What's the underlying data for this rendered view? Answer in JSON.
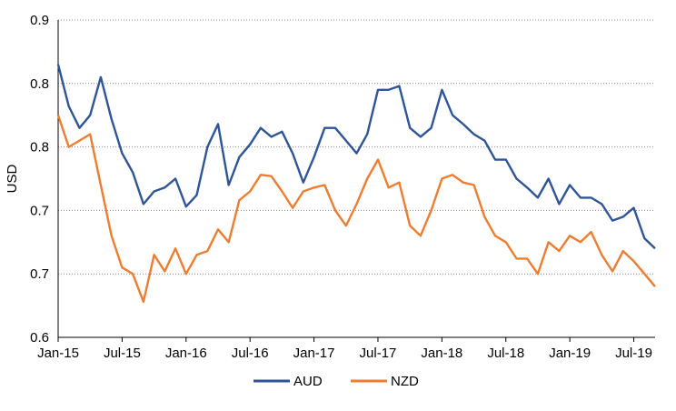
{
  "chart_data": {
    "type": "line",
    "title": "",
    "xlabel": "",
    "ylabel": "USD",
    "y_tick_labels": [
      "0.6",
      "0.7",
      "0.7",
      "0.8",
      "0.8",
      "0.9"
    ],
    "y_tick_values": [
      0.6,
      0.65,
      0.7,
      0.75,
      0.8,
      0.85
    ],
    "ylim": [
      0.6,
      0.85
    ],
    "x_tick_labels": [
      "Jan-15",
      "Jul-15",
      "Jan-16",
      "Jul-16",
      "Jan-17",
      "Jul-17",
      "Jan-18",
      "Jul-18",
      "Jan-19",
      "Jul-19"
    ],
    "x_tick_dates": [
      "2015-01",
      "2015-07",
      "2016-01",
      "2016-07",
      "2017-01",
      "2017-07",
      "2018-01",
      "2018-07",
      "2019-01",
      "2019-07"
    ],
    "xlim": [
      "2015-01",
      "2019-09"
    ],
    "grid": "horizontal dotted",
    "legend_position": "bottom",
    "x": [
      "2015-01",
      "2015-02",
      "2015-03",
      "2015-04",
      "2015-05",
      "2015-06",
      "2015-07",
      "2015-08",
      "2015-09",
      "2015-10",
      "2015-11",
      "2015-12",
      "2016-01",
      "2016-02",
      "2016-03",
      "2016-04",
      "2016-05",
      "2016-06",
      "2016-07",
      "2016-08",
      "2016-09",
      "2016-10",
      "2016-11",
      "2016-12",
      "2017-01",
      "2017-02",
      "2017-03",
      "2017-04",
      "2017-05",
      "2017-06",
      "2017-07",
      "2017-08",
      "2017-09",
      "2017-10",
      "2017-11",
      "2017-12",
      "2018-01",
      "2018-02",
      "2018-03",
      "2018-04",
      "2018-05",
      "2018-06",
      "2018-07",
      "2018-08",
      "2018-09",
      "2018-10",
      "2018-11",
      "2018-12",
      "2019-01",
      "2019-02",
      "2019-03",
      "2019-04",
      "2019-05",
      "2019-06",
      "2019-07",
      "2019-08",
      "2019-09"
    ],
    "series": [
      {
        "name": "AUD",
        "color": "#2f5597",
        "values": [
          0.815,
          0.782,
          0.765,
          0.775,
          0.805,
          0.772,
          0.745,
          0.73,
          0.705,
          0.715,
          0.718,
          0.725,
          0.703,
          0.712,
          0.75,
          0.768,
          0.72,
          0.742,
          0.752,
          0.765,
          0.758,
          0.762,
          0.745,
          0.722,
          0.742,
          0.765,
          0.765,
          0.755,
          0.745,
          0.76,
          0.795,
          0.795,
          0.798,
          0.765,
          0.758,
          0.765,
          0.795,
          0.775,
          0.768,
          0.76,
          0.755,
          0.74,
          0.74,
          0.725,
          0.718,
          0.71,
          0.725,
          0.705,
          0.72,
          0.71,
          0.71,
          0.705,
          0.692,
          0.695,
          0.702,
          0.678,
          0.67
        ]
      },
      {
        "name": "NZD",
        "color": "#ed7d31",
        "values": [
          0.775,
          0.75,
          0.755,
          0.76,
          0.72,
          0.68,
          0.655,
          0.65,
          0.628,
          0.665,
          0.652,
          0.67,
          0.65,
          0.665,
          0.668,
          0.685,
          0.675,
          0.708,
          0.715,
          0.728,
          0.727,
          0.715,
          0.702,
          0.715,
          0.718,
          0.72,
          0.7,
          0.688,
          0.705,
          0.725,
          0.74,
          0.718,
          0.722,
          0.688,
          0.68,
          0.7,
          0.725,
          0.728,
          0.722,
          0.72,
          0.695,
          0.68,
          0.675,
          0.662,
          0.662,
          0.65,
          0.675,
          0.668,
          0.68,
          0.675,
          0.683,
          0.665,
          0.652,
          0.668,
          0.66,
          0.65,
          0.64
        ]
      }
    ]
  }
}
